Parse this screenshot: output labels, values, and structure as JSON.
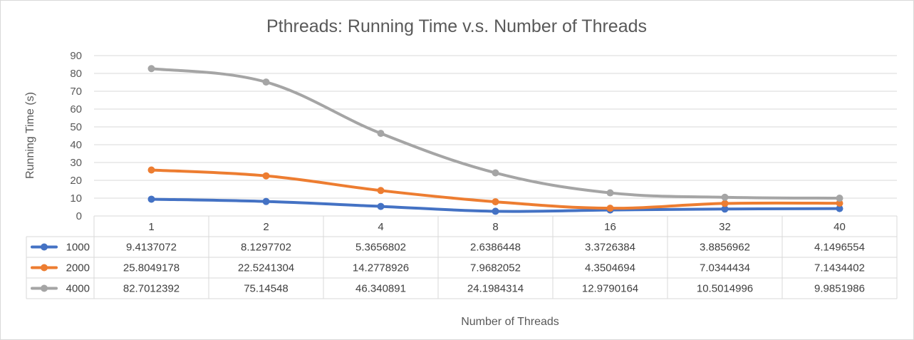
{
  "chart_data": {
    "type": "line",
    "title": "Pthreads: Running Time v.s. Number of Threads",
    "xlabel": "Number of Threads",
    "ylabel": "Running Time (s)",
    "ylim": [
      0,
      90
    ],
    "yticks": [
      "0",
      "10",
      "20",
      "30",
      "40",
      "50",
      "60",
      "70",
      "80",
      "90"
    ],
    "grid": true,
    "categories": [
      "1",
      "2",
      "4",
      "8",
      "16",
      "32",
      "40"
    ],
    "series": [
      {
        "name": "1000",
        "color": "#4472c4",
        "values": [
          9.4137072,
          8.1297702,
          5.3656802,
          2.6386448,
          3.3726384,
          3.8856962,
          4.1496554
        ],
        "labels": [
          "9.4137072",
          "8.1297702",
          "5.3656802",
          "2.6386448",
          "3.3726384",
          "3.8856962",
          "4.1496554"
        ]
      },
      {
        "name": "2000",
        "color": "#ed7d31",
        "values": [
          25.8049178,
          22.5241304,
          14.2778926,
          7.9682052,
          4.3504694,
          7.0344434,
          7.1434402
        ],
        "labels": [
          "25.8049178",
          "22.5241304",
          "14.2778926",
          "7.9682052",
          "4.3504694",
          "7.0344434",
          "7.1434402"
        ]
      },
      {
        "name": "4000",
        "color": "#a5a5a5",
        "values": [
          82.7012392,
          75.14548,
          46.340891,
          24.1984314,
          12.9790164,
          10.5014996,
          9.9851986
        ],
        "labels": [
          "82.7012392",
          "75.14548",
          "46.340891",
          "24.1984314",
          "12.9790164",
          "10.5014996",
          "9.9851986"
        ]
      }
    ]
  }
}
